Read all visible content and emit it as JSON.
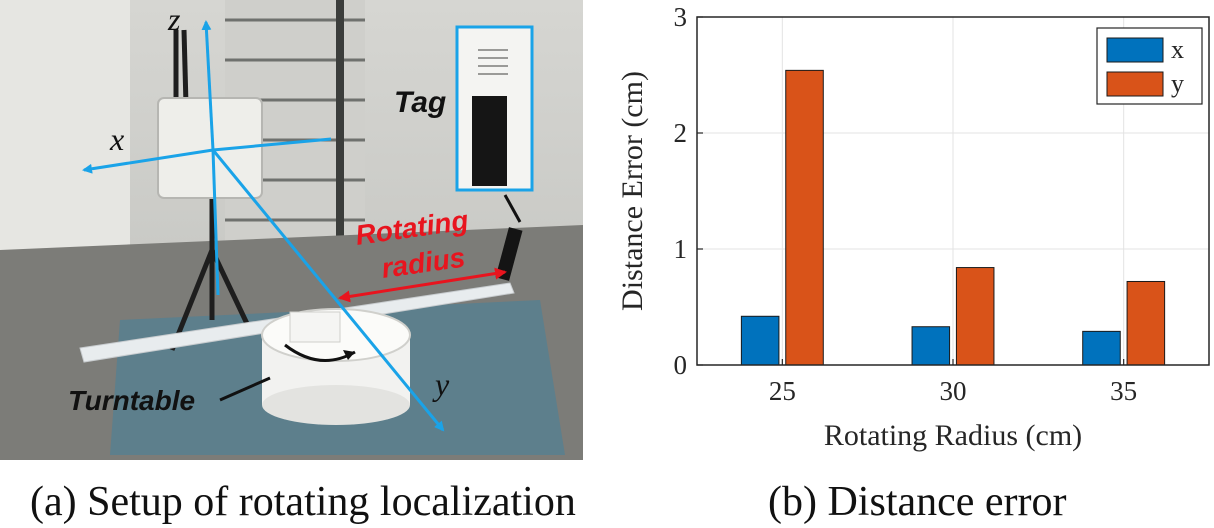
{
  "figure_a": {
    "caption": "(a) Setup of rotating localization",
    "labels": {
      "z_axis": "z",
      "x_axis": "x",
      "y_axis": "y",
      "tag": "Tag",
      "rotating_line1": "Rotating",
      "rotating_line2": "radius",
      "turntable": "Turntable"
    },
    "colors": {
      "axis": "#1aa3e8",
      "radius_arrow": "#e8141e"
    }
  },
  "figure_b": {
    "caption": "(b) Distance error"
  },
  "chart_data": {
    "type": "bar",
    "categories": [
      "25",
      "30",
      "35"
    ],
    "series": [
      {
        "name": "x",
        "values": [
          0.42,
          0.33,
          0.29
        ],
        "color": "#0072BD"
      },
      {
        "name": "y",
        "values": [
          2.54,
          0.84,
          0.72
        ],
        "color": "#D95319"
      }
    ],
    "xlabel": "Rotating Radius (cm)",
    "ylabel": "Distance Error (cm)",
    "ylim": [
      0,
      3
    ],
    "yticks": [
      "0",
      "1",
      "2",
      "3"
    ],
    "grid": true,
    "legend": "top-right"
  }
}
